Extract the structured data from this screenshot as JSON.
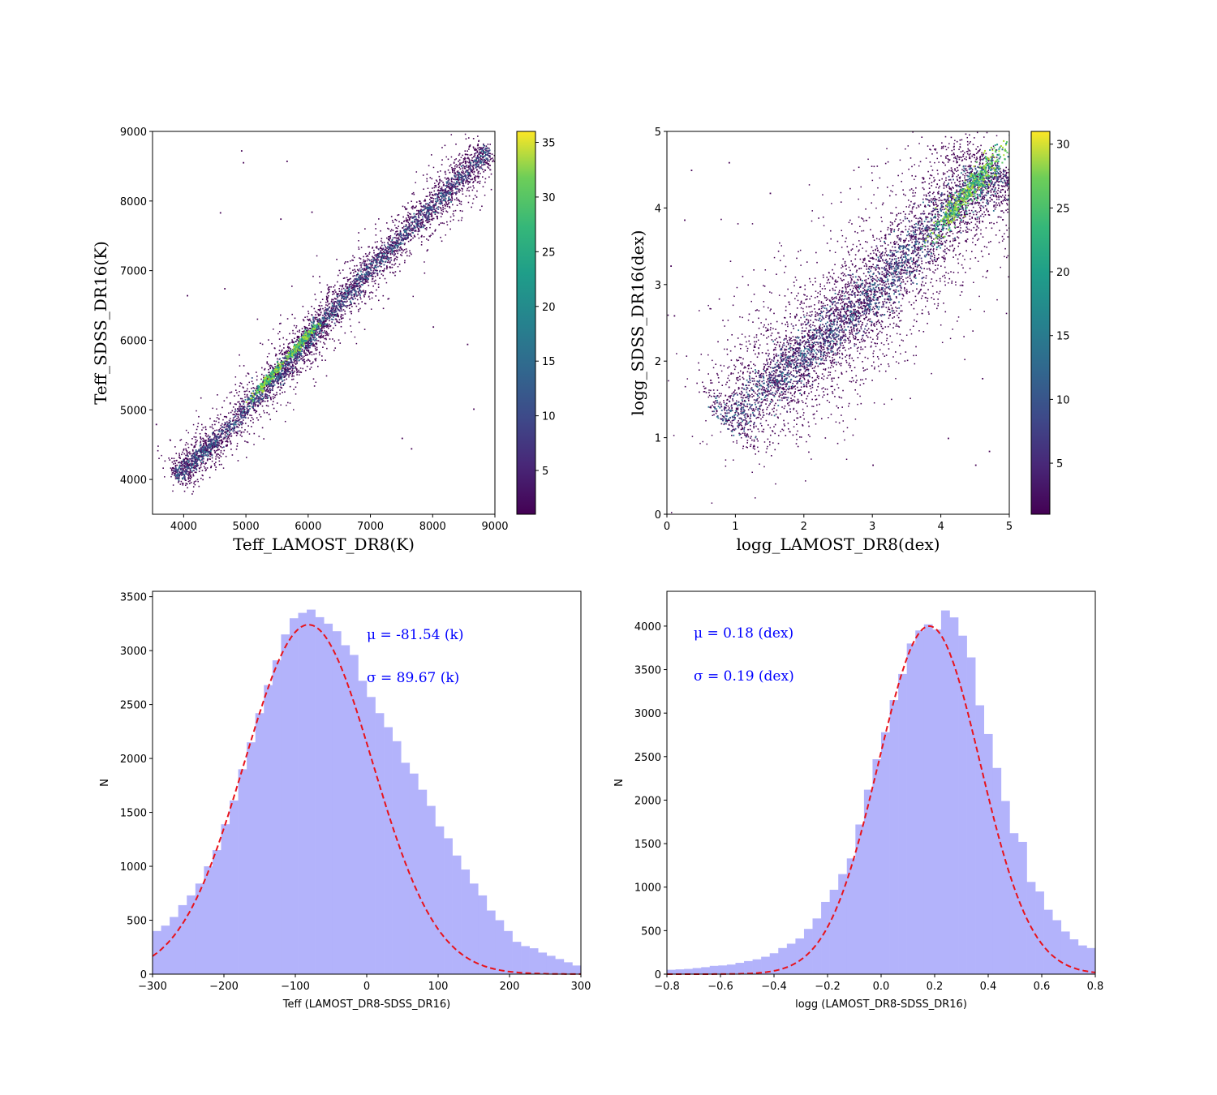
{
  "chart_data": [
    {
      "type": "heatmap",
      "xlabel": "Teff_LAMOST_DR8(K)",
      "ylabel": "Teff_SDSS_DR16(K)",
      "xlim": [
        3500,
        9000
      ],
      "ylim": [
        3500,
        9000
      ],
      "x_ticks": [
        4000,
        5000,
        6000,
        7000,
        8000,
        9000
      ],
      "y_ticks": [
        4000,
        5000,
        6000,
        7000,
        8000,
        9000
      ],
      "colormap": "viridis",
      "colorbar": {
        "vmin": 1,
        "vmax": 36,
        "ticks": [
          5,
          10,
          15,
          20,
          25,
          30,
          35
        ]
      },
      "density_trend": {
        "x": [
          3850,
          4500,
          5500,
          6200,
          7000,
          8000,
          8900
        ],
        "y": [
          4050,
          4550,
          5500,
          6250,
          7050,
          7950,
          8750
        ]
      },
      "peak_density_regions": [
        {
          "x": 5350,
          "y": 5450
        },
        {
          "x": 5900,
          "y": 6000
        }
      ],
      "outlier_points": [
        [
          4920,
          8730
        ],
        [
          4950,
          8560
        ],
        [
          5650,
          8580
        ],
        [
          4580,
          7840
        ],
        [
          6050,
          7850
        ],
        [
          5550,
          7750
        ],
        [
          7500,
          4600
        ],
        [
          7650,
          4450
        ],
        [
          8650,
          5020
        ],
        [
          8000,
          6200
        ],
        [
          8550,
          5950
        ],
        [
          4650,
          6750
        ],
        [
          4050,
          6650
        ],
        [
          3550,
          4800
        ]
      ]
    },
    {
      "type": "heatmap",
      "xlabel": "logg_LAMOST_DR8(dex)",
      "ylabel": "logg_SDSS_DR16(dex)",
      "xlim": [
        0,
        5
      ],
      "ylim": [
        0,
        5
      ],
      "x_ticks": [
        0,
        1,
        2,
        3,
        4,
        5
      ],
      "y_ticks": [
        0,
        1,
        2,
        3,
        4,
        5
      ],
      "colormap": "viridis",
      "colorbar": {
        "vmin": 1,
        "vmax": 31,
        "ticks": [
          5,
          10,
          15,
          20,
          25,
          30
        ]
      },
      "density_trend": {
        "x": [
          0.8,
          1.5,
          2.0,
          2.5,
          3.0,
          3.5,
          4.0,
          4.5,
          4.9
        ],
        "y": [
          1.2,
          1.7,
          2.1,
          2.5,
          2.9,
          3.4,
          3.9,
          4.3,
          4.5
        ]
      },
      "peak_density_regions": [
        {
          "x": 4.2,
          "y": 4.0
        },
        {
          "x": 4.6,
          "y": 4.45
        }
      ],
      "outlier_points": [
        [
          0.05,
          3.25
        ],
        [
          0.1,
          2.6
        ],
        [
          0.25,
          3.85
        ],
        [
          0.35,
          4.5
        ],
        [
          0.9,
          4.6
        ],
        [
          1.5,
          4.2
        ],
        [
          4.1,
          1.0
        ],
        [
          4.5,
          0.65
        ],
        [
          4.7,
          0.83
        ],
        [
          4.6,
          1.78
        ],
        [
          3.0,
          0.65
        ],
        [
          4.3,
          3.0
        ]
      ]
    },
    {
      "type": "bar",
      "subtype": "histogram",
      "xlabel": "Teff (LAMOST_DR8-SDSS_DR16)",
      "ylabel": "N",
      "xlim": [
        -300,
        300
      ],
      "ylim": [
        0,
        3550
      ],
      "x_ticks": [
        -300,
        -200,
        -100,
        0,
        100,
        200,
        300
      ],
      "y_ticks": [
        0,
        500,
        1000,
        1500,
        2000,
        2500,
        3000,
        3500
      ],
      "bin_start": -300,
      "bin_width": 12,
      "values": [
        400,
        450,
        530,
        640,
        730,
        840,
        1000,
        1150,
        1390,
        1610,
        1900,
        2150,
        2420,
        2680,
        2910,
        3150,
        3300,
        3350,
        3380,
        3310,
        3250,
        3180,
        3050,
        2960,
        2720,
        2570,
        2420,
        2290,
        2160,
        1960,
        1860,
        1710,
        1560,
        1370,
        1260,
        1100,
        970,
        840,
        730,
        590,
        500,
        400,
        300,
        260,
        240,
        200,
        170,
        140,
        110,
        80
      ],
      "fit": {
        "mu": -81.54,
        "sigma": 89.67,
        "amplitude": 3240
      },
      "annotations": [
        "μ = -81.54 (k)",
        "σ = 89.67 (k)"
      ],
      "bar_color": "#b3b3fb",
      "fit_color": "#e8131b",
      "annotation_color": "#0000ff"
    },
    {
      "type": "bar",
      "subtype": "histogram",
      "xlabel": "logg (LAMOST_DR8-SDSS_DR16)",
      "ylabel": "N",
      "xlim": [
        -0.8,
        0.8
      ],
      "ylim": [
        0,
        4400
      ],
      "x_ticks": [
        -0.8,
        -0.6,
        -0.4,
        -0.2,
        0.0,
        0.2,
        0.4,
        0.6,
        0.8
      ],
      "y_ticks": [
        0,
        500,
        1000,
        1500,
        2000,
        2500,
        3000,
        3500,
        4000
      ],
      "bin_start": -0.8,
      "bin_width": 0.032,
      "values": [
        50,
        55,
        60,
        70,
        80,
        95,
        100,
        110,
        130,
        150,
        170,
        200,
        240,
        300,
        350,
        410,
        520,
        640,
        830,
        970,
        1150,
        1330,
        1720,
        2120,
        2470,
        2780,
        3150,
        3450,
        3800,
        3950,
        4020,
        3960,
        4180,
        4100,
        3890,
        3640,
        3090,
        2760,
        2370,
        1990,
        1620,
        1520,
        1060,
        950,
        740,
        620,
        490,
        400,
        330,
        300,
        230
      ],
      "fit": {
        "mu": 0.18,
        "sigma": 0.19,
        "amplitude": 4000
      },
      "annotations": [
        "μ = 0.18 (dex)",
        "σ = 0.19 (dex)"
      ],
      "bar_color": "#b3b3fb",
      "fit_color": "#e8131b",
      "annotation_color": "#0000ff"
    }
  ]
}
